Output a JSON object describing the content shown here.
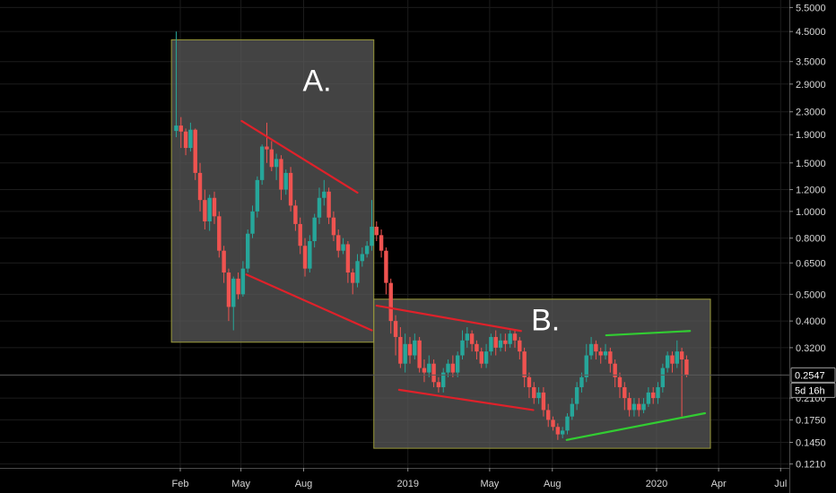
{
  "chart_data": {
    "type": "candlestick",
    "scale": "log",
    "ylim": [
      0.118,
      5.6
    ],
    "grid": true,
    "price_axis_side": "right",
    "x_ticks": [
      "Feb",
      "May",
      "Aug",
      "2019",
      "May",
      "Aug",
      "2020",
      "Apr",
      "Jul"
    ],
    "y_ticks": [
      "5.5000",
      "4.5000",
      "3.5000",
      "2.9000",
      "2.3000",
      "1.9000",
      "1.5000",
      "1.2000",
      "1.0000",
      "0.8000",
      "0.6500",
      "0.5000",
      "0.4000",
      "0.3200",
      "0.2100",
      "0.1750",
      "0.1450",
      "0.1210"
    ],
    "last_price": "0.2547",
    "countdown": "5d 16h",
    "colors": {
      "up": "#26a69a",
      "down": "#ef5350",
      "trend_red": "#e0212a",
      "trend_green": "#32cd32",
      "zone_fill": "#5a5a5a",
      "zone_border": "#9a9a3a",
      "grid": "#1c1c1c"
    },
    "annotations": [
      {
        "label": "A.",
        "x0": "2018-01-19",
        "x1": "2018-11-12",
        "y_top": 4.2,
        "y_bottom": 0.335
      },
      {
        "label": "B.",
        "x0": "2018-11-12",
        "x1": "2020-03-20",
        "y_top": 0.48,
        "y_bottom": 0.138
      }
    ],
    "trendlines": [
      {
        "color": "red",
        "from": [
          "2018-05-02",
          2.13
        ],
        "to": [
          "2018-10-19",
          1.17
        ]
      },
      {
        "color": "red",
        "from": [
          "2018-05-09",
          0.59
        ],
        "to": [
          "2018-11-09",
          0.37
        ]
      },
      {
        "color": "red",
        "from": [
          "2018-11-16",
          0.455
        ],
        "to": [
          "2019-06-16",
          0.368
        ]
      },
      {
        "color": "red",
        "from": [
          "2018-12-19",
          0.225
        ],
        "to": [
          "2019-07-04",
          0.19
        ]
      },
      {
        "color": "green",
        "from": [
          "2019-10-19",
          0.355
        ],
        "to": [
          "2020-02-19",
          0.368
        ]
      },
      {
        "color": "green",
        "from": [
          "2019-08-22",
          0.148
        ],
        "to": [
          "2020-03-12",
          0.185
        ]
      }
    ],
    "candles": [
      [
        "2018-01-26",
        1.96,
        2.05,
        1.86,
        4.5
      ],
      [
        "2018-02-02",
        2.05,
        1.95,
        1.7,
        2.2
      ],
      [
        "2018-02-09",
        1.95,
        1.7,
        1.6,
        2.0
      ],
      [
        "2018-02-16",
        1.7,
        1.98,
        1.65,
        2.1
      ],
      [
        "2018-02-23",
        1.98,
        1.38,
        1.3,
        2.0
      ],
      [
        "2018-03-02",
        1.38,
        1.1,
        1.0,
        1.5
      ],
      [
        "2018-03-09",
        1.1,
        0.92,
        0.86,
        1.2
      ],
      [
        "2018-03-16",
        0.92,
        1.12,
        0.85,
        1.15
      ],
      [
        "2018-03-23",
        1.12,
        0.96,
        0.9,
        1.18
      ],
      [
        "2018-03-30",
        0.96,
        0.72,
        0.68,
        1.0
      ],
      [
        "2018-04-06",
        0.72,
        0.6,
        0.55,
        0.75
      ],
      [
        "2018-04-13",
        0.6,
        0.45,
        0.4,
        0.62
      ],
      [
        "2018-04-20",
        0.45,
        0.57,
        0.37,
        0.58
      ],
      [
        "2018-04-27",
        0.57,
        0.5,
        0.48,
        0.6
      ],
      [
        "2018-05-04",
        0.5,
        0.62,
        0.49,
        0.66
      ],
      [
        "2018-05-11",
        0.62,
        0.83,
        0.6,
        0.86
      ],
      [
        "2018-05-18",
        0.83,
        1.0,
        0.8,
        1.05
      ],
      [
        "2018-05-25",
        1.0,
        1.3,
        0.95,
        1.34
      ],
      [
        "2018-06-01",
        1.3,
        1.72,
        1.25,
        1.75
      ],
      [
        "2018-06-08",
        1.72,
        1.68,
        1.5,
        2.1
      ],
      [
        "2018-06-15",
        1.68,
        1.45,
        1.4,
        1.8
      ],
      [
        "2018-06-22",
        1.45,
        1.55,
        1.3,
        1.62
      ],
      [
        "2018-06-29",
        1.55,
        1.2,
        1.1,
        1.6
      ],
      [
        "2018-07-06",
        1.2,
        1.38,
        1.15,
        1.42
      ],
      [
        "2018-07-13",
        1.38,
        1.05,
        1.0,
        1.45
      ],
      [
        "2018-07-20",
        1.05,
        0.9,
        0.85,
        1.1
      ],
      [
        "2018-07-27",
        0.9,
        0.75,
        0.7,
        0.95
      ],
      [
        "2018-08-03",
        0.75,
        0.62,
        0.58,
        0.8
      ],
      [
        "2018-08-10",
        0.62,
        0.78,
        0.6,
        0.82
      ],
      [
        "2018-08-17",
        0.78,
        0.95,
        0.74,
        0.98
      ],
      [
        "2018-08-24",
        0.95,
        1.12,
        0.9,
        1.22
      ],
      [
        "2018-08-31",
        1.12,
        1.18,
        1.05,
        1.3
      ],
      [
        "2018-09-07",
        1.18,
        0.95,
        0.9,
        1.22
      ],
      [
        "2018-09-14",
        0.95,
        0.82,
        0.78,
        1.0
      ],
      [
        "2018-09-21",
        0.82,
        0.72,
        0.68,
        0.86
      ],
      [
        "2018-09-28",
        0.72,
        0.76,
        0.7,
        0.8
      ],
      [
        "2018-10-05",
        0.76,
        0.6,
        0.55,
        0.78
      ],
      [
        "2018-10-12",
        0.6,
        0.55,
        0.5,
        0.62
      ],
      [
        "2018-10-19",
        0.55,
        0.66,
        0.53,
        0.7
      ],
      [
        "2018-10-26",
        0.66,
        0.7,
        0.63,
        0.74
      ],
      [
        "2018-11-02",
        0.7,
        0.75,
        0.68,
        0.78
      ],
      [
        "2018-11-09",
        0.75,
        0.88,
        0.72,
        1.1
      ],
      [
        "2018-11-16",
        0.88,
        0.82,
        0.78,
        0.92
      ],
      [
        "2018-11-23",
        0.82,
        0.72,
        0.68,
        0.86
      ],
      [
        "2018-11-30",
        0.72,
        0.55,
        0.5,
        0.74
      ],
      [
        "2018-12-07",
        0.55,
        0.4,
        0.36,
        0.57
      ],
      [
        "2018-12-14",
        0.4,
        0.35,
        0.3,
        0.42
      ],
      [
        "2018-12-21",
        0.35,
        0.28,
        0.27,
        0.38
      ],
      [
        "2018-12-28",
        0.28,
        0.33,
        0.26,
        0.36
      ],
      [
        "2019-01-04",
        0.33,
        0.3,
        0.28,
        0.35
      ],
      [
        "2019-01-11",
        0.3,
        0.34,
        0.29,
        0.36
      ],
      [
        "2019-01-18",
        0.34,
        0.27,
        0.26,
        0.35
      ],
      [
        "2019-01-25",
        0.27,
        0.26,
        0.24,
        0.29
      ],
      [
        "2019-02-01",
        0.26,
        0.28,
        0.25,
        0.3
      ],
      [
        "2019-02-08",
        0.28,
        0.24,
        0.23,
        0.29
      ],
      [
        "2019-02-15",
        0.24,
        0.23,
        0.22,
        0.25
      ],
      [
        "2019-02-22",
        0.23,
        0.26,
        0.22,
        0.27
      ],
      [
        "2019-03-01",
        0.26,
        0.28,
        0.25,
        0.29
      ],
      [
        "2019-03-08",
        0.28,
        0.26,
        0.25,
        0.3
      ],
      [
        "2019-03-15",
        0.26,
        0.3,
        0.25,
        0.31
      ],
      [
        "2019-03-22",
        0.3,
        0.34,
        0.29,
        0.37
      ],
      [
        "2019-03-29",
        0.34,
        0.36,
        0.32,
        0.38
      ],
      [
        "2019-04-05",
        0.36,
        0.33,
        0.31,
        0.37
      ],
      [
        "2019-04-12",
        0.33,
        0.31,
        0.29,
        0.34
      ],
      [
        "2019-04-19",
        0.31,
        0.28,
        0.27,
        0.32
      ],
      [
        "2019-04-26",
        0.28,
        0.31,
        0.27,
        0.33
      ],
      [
        "2019-05-03",
        0.31,
        0.35,
        0.3,
        0.36
      ],
      [
        "2019-05-10",
        0.35,
        0.32,
        0.3,
        0.37
      ],
      [
        "2019-05-17",
        0.32,
        0.34,
        0.31,
        0.36
      ],
      [
        "2019-05-24",
        0.34,
        0.33,
        0.31,
        0.36
      ],
      [
        "2019-05-31",
        0.33,
        0.36,
        0.32,
        0.37
      ],
      [
        "2019-06-07",
        0.36,
        0.34,
        0.32,
        0.37
      ],
      [
        "2019-06-14",
        0.34,
        0.31,
        0.29,
        0.35
      ],
      [
        "2019-06-21",
        0.31,
        0.25,
        0.23,
        0.32
      ],
      [
        "2019-06-28",
        0.25,
        0.23,
        0.21,
        0.26
      ],
      [
        "2019-07-05",
        0.23,
        0.21,
        0.2,
        0.24
      ],
      [
        "2019-07-12",
        0.21,
        0.22,
        0.2,
        0.23
      ],
      [
        "2019-07-19",
        0.22,
        0.19,
        0.18,
        0.23
      ],
      [
        "2019-07-26",
        0.19,
        0.175,
        0.165,
        0.2
      ],
      [
        "2019-08-02",
        0.175,
        0.165,
        0.16,
        0.18
      ],
      [
        "2019-08-09",
        0.165,
        0.155,
        0.148,
        0.17
      ],
      [
        "2019-08-16",
        0.155,
        0.16,
        0.15,
        0.165
      ],
      [
        "2019-08-23",
        0.16,
        0.18,
        0.155,
        0.185
      ],
      [
        "2019-08-30",
        0.18,
        0.2,
        0.175,
        0.21
      ],
      [
        "2019-09-06",
        0.2,
        0.23,
        0.19,
        0.24
      ],
      [
        "2019-09-13",
        0.23,
        0.25,
        0.22,
        0.26
      ],
      [
        "2019-09-20",
        0.25,
        0.3,
        0.24,
        0.33
      ],
      [
        "2019-09-27",
        0.3,
        0.33,
        0.29,
        0.35
      ],
      [
        "2019-10-04",
        0.33,
        0.31,
        0.29,
        0.34
      ],
      [
        "2019-10-11",
        0.31,
        0.3,
        0.28,
        0.32
      ],
      [
        "2019-10-18",
        0.3,
        0.31,
        0.29,
        0.33
      ],
      [
        "2019-10-25",
        0.31,
        0.28,
        0.26,
        0.32
      ],
      [
        "2019-11-01",
        0.28,
        0.25,
        0.23,
        0.29
      ],
      [
        "2019-11-08",
        0.25,
        0.23,
        0.21,
        0.26
      ],
      [
        "2019-11-15",
        0.23,
        0.21,
        0.19,
        0.24
      ],
      [
        "2019-11-22",
        0.21,
        0.19,
        0.18,
        0.22
      ],
      [
        "2019-11-29",
        0.19,
        0.2,
        0.18,
        0.21
      ],
      [
        "2019-12-06",
        0.2,
        0.19,
        0.18,
        0.21
      ],
      [
        "2019-12-13",
        0.19,
        0.2,
        0.185,
        0.21
      ],
      [
        "2019-12-20",
        0.2,
        0.22,
        0.195,
        0.23
      ],
      [
        "2019-12-27",
        0.22,
        0.21,
        0.2,
        0.23
      ],
      [
        "2020-01-03",
        0.21,
        0.23,
        0.2,
        0.24
      ],
      [
        "2020-01-10",
        0.23,
        0.27,
        0.22,
        0.28
      ],
      [
        "2020-01-17",
        0.27,
        0.3,
        0.26,
        0.31
      ],
      [
        "2020-01-24",
        0.3,
        0.28,
        0.26,
        0.31
      ],
      [
        "2020-01-31",
        0.28,
        0.31,
        0.27,
        0.34
      ],
      [
        "2020-02-07",
        0.31,
        0.29,
        0.18,
        0.32
      ],
      [
        "2020-02-14",
        0.29,
        0.2547,
        0.25,
        0.3
      ]
    ]
  }
}
